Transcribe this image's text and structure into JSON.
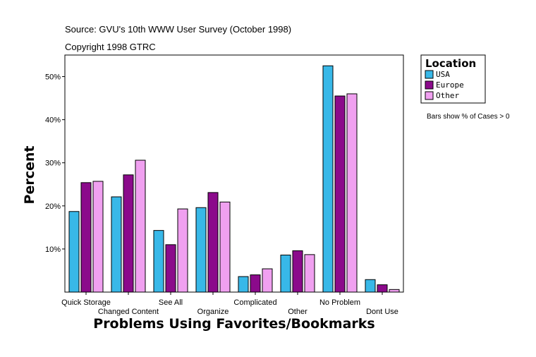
{
  "header": {
    "source": "Source: GVU's 10th WWW User Survey (October 1998)",
    "copyright": "Copyright 1998 GTRC"
  },
  "note": "Bars show % of Cases > 0",
  "chart_data": {
    "type": "bar",
    "title": "",
    "xlabel": "Problems Using Favorites/Bookmarks",
    "ylabel": "Percent",
    "ylim": [
      0,
      55
    ],
    "yticks": [
      10,
      20,
      30,
      40,
      50
    ],
    "ytick_labels": [
      "10%",
      "20%",
      "30%",
      "40%",
      "50%"
    ],
    "categories": [
      "Quick Storage",
      "Changed Content",
      "See All",
      "Organize",
      "Complicated",
      "Other",
      "No Problem",
      "Dont Use"
    ],
    "series": [
      {
        "name": "USA",
        "color": "#38b8e8",
        "values": [
          18.7,
          22.1,
          14.3,
          19.6,
          3.6,
          8.6,
          52.5,
          2.9
        ]
      },
      {
        "name": "Europe",
        "color": "#8b0a8b",
        "values": [
          25.4,
          27.2,
          11.0,
          23.1,
          4.0,
          9.6,
          45.5,
          1.7
        ]
      },
      {
        "name": "Other",
        "color": "#f0a0f0",
        "values": [
          25.7,
          30.6,
          19.3,
          20.9,
          5.4,
          8.7,
          46.0,
          0.6
        ]
      }
    ],
    "legend": {
      "title": "Location",
      "position": "right"
    }
  }
}
